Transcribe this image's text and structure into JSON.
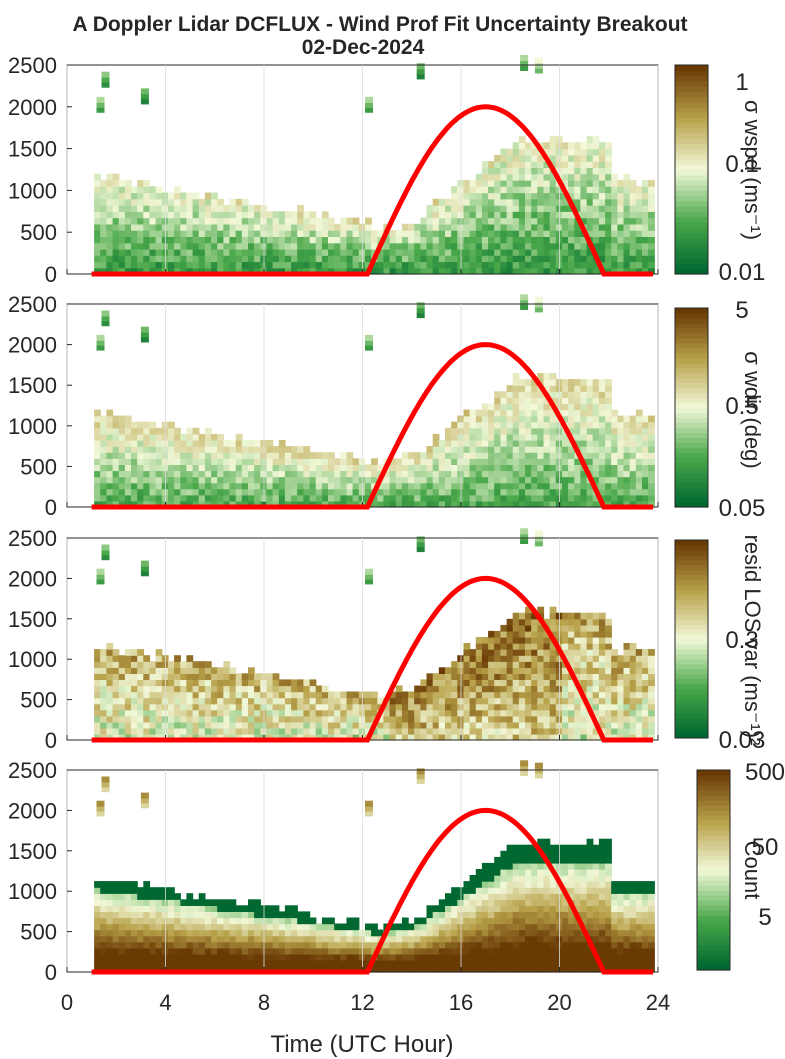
{
  "figure": {
    "title_line1": "A Doppler Lidar DCFLUX - Wind Prof Fit Uncertainty Breakout",
    "title_line2": "02-Dec-2024",
    "xlabel": "Time (UTC Hour)",
    "xticks": [
      "0",
      "4",
      "8",
      "12",
      "16",
      "20",
      "24"
    ],
    "yticks": [
      "0",
      "500",
      "1000",
      "1500",
      "2000",
      "2500"
    ]
  },
  "colors": {
    "sun_curve": "#ff0000",
    "low": "#006830",
    "mid": "#f2f8d8",
    "high": "#6a3a05"
  },
  "chart_data": [
    {
      "type": "heatmap",
      "panel": "wind speed uncertainty",
      "colorbar_label": "σ wspd (ms⁻¹)",
      "colorbar_ticks": [
        "1",
        "0.1",
        "0.01"
      ],
      "scale": "log",
      "clim": [
        0.01,
        1
      ],
      "xlim": [
        0,
        24
      ],
      "ylim": [
        0,
        2500
      ],
      "sun_curve": {
        "x": [
          1,
          12.2,
          17,
          21.8,
          23.8
        ],
        "y": [
          0,
          0,
          2000,
          0,
          0
        ]
      }
    },
    {
      "type": "heatmap",
      "panel": "wind direction uncertainty",
      "colorbar_label": "σ wdir (deg)",
      "colorbar_ticks": [
        "5",
        "0.5",
        "0.05"
      ],
      "scale": "log",
      "clim": [
        0.05,
        5
      ],
      "xlim": [
        0,
        24
      ],
      "ylim": [
        0,
        2500
      ],
      "sun_curve": {
        "x": [
          1,
          12.2,
          17,
          21.8,
          23.8
        ],
        "y": [
          0,
          0,
          2000,
          0,
          0
        ]
      }
    },
    {
      "type": "heatmap",
      "panel": "residual LOS variance",
      "colorbar_label": "resid LOS var (ms⁻¹)²",
      "colorbar_ticks": [
        "0.3",
        "0.03"
      ],
      "scale": "log",
      "clim": [
        0.03,
        3
      ],
      "xlim": [
        0,
        24
      ],
      "ylim": [
        0,
        2500
      ],
      "sun_curve": {
        "x": [
          1,
          12.2,
          17,
          21.8,
          23.8
        ],
        "y": [
          0,
          0,
          2000,
          0,
          0
        ]
      }
    },
    {
      "type": "heatmap",
      "panel": "count",
      "colorbar_label": "Count",
      "colorbar_ticks": [
        "500",
        "50",
        "5"
      ],
      "scale": "log",
      "clim": [
        1,
        500
      ],
      "xlim": [
        0,
        24
      ],
      "ylim": [
        0,
        2500
      ],
      "sun_curve": {
        "x": [
          1,
          12.2,
          17,
          21.8,
          23.8
        ],
        "y": [
          0,
          0,
          2000,
          0,
          0
        ]
      }
    }
  ]
}
